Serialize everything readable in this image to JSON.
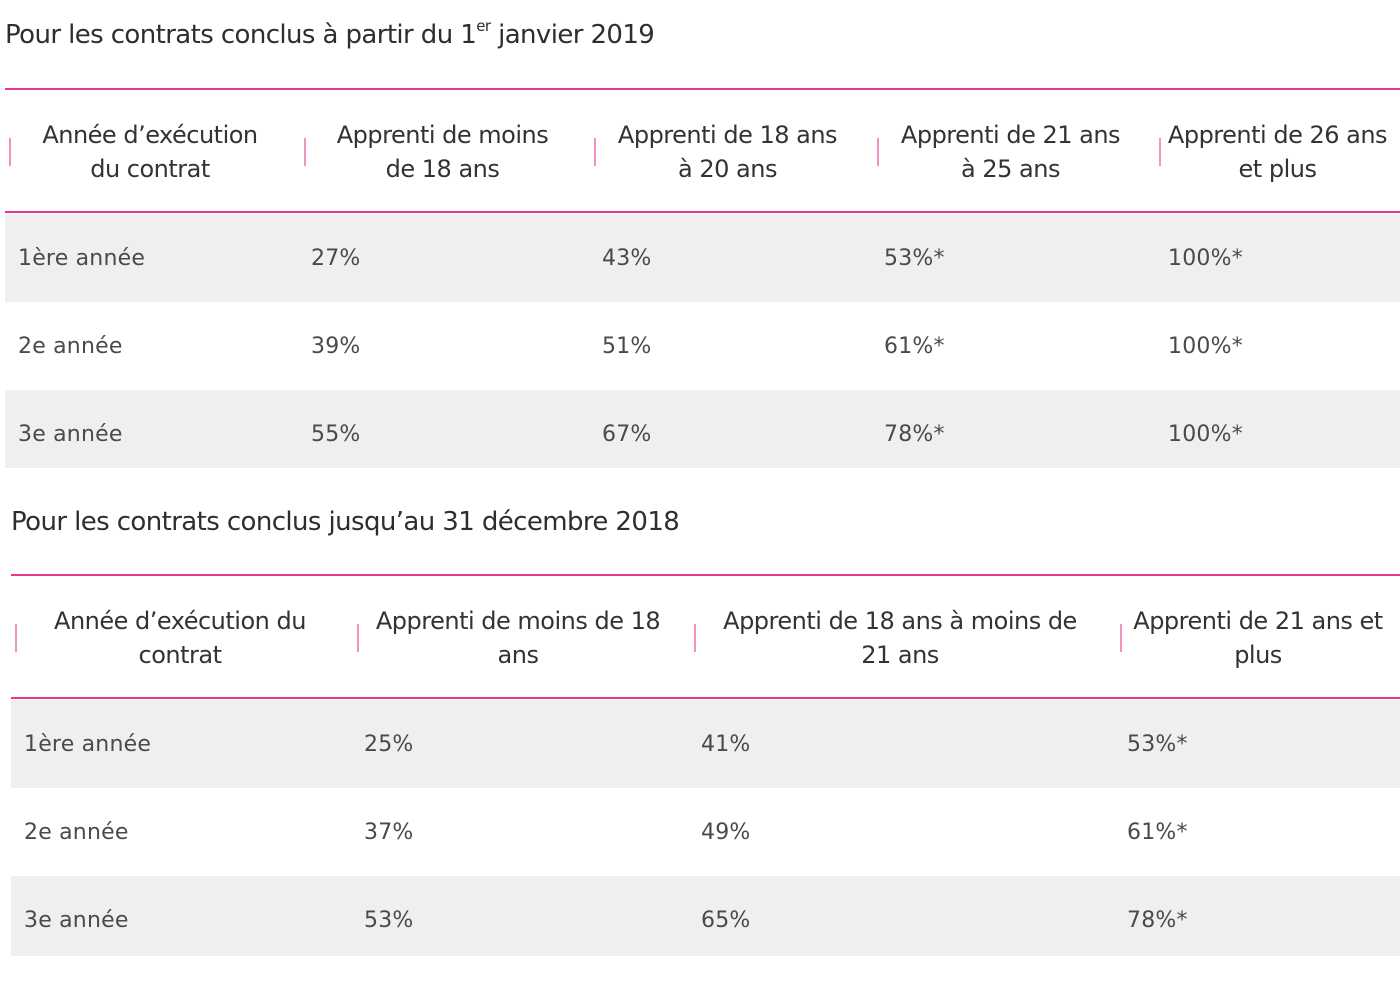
{
  "table_2019": {
    "title": "Pour les contrats conclus à partir du 1",
    "title_sup": "er",
    "title_end": " janvier 2019",
    "headers": [
      "Année d’exécution du contrat",
      "Apprenti de moins de 18 ans",
      "Apprenti de 18 ans à 20 ans",
      "Apprenti de 21 ans à 25 ans",
      "Apprenti de 26 ans et plus"
    ],
    "rows": [
      [
        "1ère année",
        "27%",
        "43%",
        "53%*",
        "100%*"
      ],
      [
        "2e année",
        "39%",
        "51%",
        "61%*",
        "100%*"
      ],
      [
        "3e année",
        "55%",
        "67%",
        "78%*",
        "100%*"
      ]
    ]
  },
  "table_2018": {
    "title": "Pour les contrats conclus jusqu’au 31 décembre 2018",
    "headers": [
      "Année d’exécution du contrat",
      "Apprenti de moins de 18 ans",
      "Apprenti de 18 ans à moins de 21 ans",
      "Apprenti de 21 ans et plus"
    ],
    "rows": [
      [
        "1ère année",
        "25%",
        "41%",
        "53%*"
      ],
      [
        "2e année",
        "37%",
        "49%",
        "61%*"
      ],
      [
        "3e année",
        "53%",
        "65%",
        "78%*"
      ]
    ]
  },
  "colors": {
    "accent_rule": "#e8368f",
    "row_shade": "#efefef",
    "text": "#3a3a3a"
  }
}
